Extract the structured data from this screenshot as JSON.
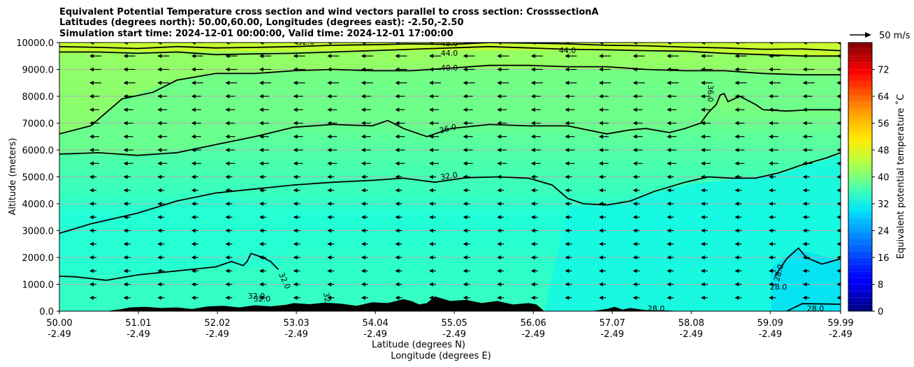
{
  "chart_data": {
    "type": "contourf",
    "title_lines": [
      "Equivalent Potential Temperature cross section and wind vectors parallel to cross section: CrosssectionA",
      "Latitudes (degrees north): 50.00,60.00, Longitudes (degrees east): -2.50,-2.50",
      "Simulation start time: 2024-12-01 00:00:00, Valid time: 2024-12-01 17:00:00"
    ],
    "xlabel_lines": [
      "Latitude (degrees N)",
      "Longitude (degrees E)"
    ],
    "ylabel": "Altitude (meters)",
    "x_tick_lat": [
      "50.00",
      "51.01",
      "52.02",
      "53.03",
      "54.04",
      "55.05",
      "56.06",
      "57.07",
      "58.08",
      "59.09",
      "59.99"
    ],
    "x_tick_lon": [
      "-2.49",
      "-2.49",
      "-2.49",
      "-2.49",
      "-2.49",
      "-2.49",
      "-2.49",
      "-2.49",
      "-2.49",
      "-2.49",
      "-2.49"
    ],
    "x_range": [
      50.0,
      59.99
    ],
    "y_ticks": [
      "0.0",
      "1000.0",
      "2000.0",
      "3000.0",
      "4000.0",
      "5000.0",
      "6000.0",
      "7000.0",
      "8000.0",
      "9000.0",
      "10000.0"
    ],
    "ylim": [
      0,
      10000
    ],
    "grid": "horizontal",
    "colorbar": {
      "label": "Equivalent potential temperature ˚C",
      "range": [
        0,
        80
      ],
      "ticks": [
        "0",
        "8",
        "16",
        "24",
        "32",
        "40",
        "48",
        "56",
        "64",
        "72"
      ],
      "levels_step": 2,
      "colormap": "jet"
    },
    "quiver_key": "50 m/s",
    "wind_direction": "left (southward, parallel to cross section)",
    "contour_lines": [
      {
        "level": 28.0,
        "label": "28.0",
        "points": [
          [
            59.3,
            0
          ],
          [
            59.5,
            280
          ],
          [
            59.99,
            260
          ]
        ]
      },
      {
        "level": 28.0,
        "label": "28.0",
        "points": [
          [
            59.15,
            1300
          ],
          [
            59.3,
            1950
          ],
          [
            59.45,
            2350
          ],
          [
            59.55,
            2000
          ],
          [
            59.75,
            1750
          ],
          [
            59.99,
            1950
          ]
        ]
      },
      {
        "level": 32.0,
        "label": "32.0",
        "points": [
          [
            50.0,
            1300
          ],
          [
            50.2,
            1280
          ],
          [
            50.6,
            1150
          ],
          [
            51.0,
            1350
          ],
          [
            51.5,
            1500
          ],
          [
            52.0,
            1650
          ],
          [
            52.2,
            1850
          ],
          [
            52.35,
            1700
          ],
          [
            52.4,
            1850
          ],
          [
            52.45,
            2150
          ],
          [
            52.6,
            2000
          ],
          [
            52.7,
            1850
          ],
          [
            52.8,
            1550
          ]
        ]
      },
      {
        "level": 32.0,
        "label": "32.0",
        "points": [
          [
            50.0,
            2900
          ],
          [
            50.4,
            3250
          ],
          [
            51.0,
            3650
          ],
          [
            51.5,
            4100
          ],
          [
            52.0,
            4400
          ],
          [
            52.5,
            4550
          ],
          [
            53.0,
            4700
          ],
          [
            53.5,
            4800
          ],
          [
            54.0,
            4870
          ],
          [
            54.4,
            4950
          ],
          [
            54.8,
            4800
          ],
          [
            55.2,
            4970
          ],
          [
            55.6,
            5000
          ],
          [
            56.0,
            4950
          ],
          [
            56.3,
            4700
          ],
          [
            56.5,
            4200
          ],
          [
            56.7,
            4000
          ],
          [
            57.0,
            3950
          ],
          [
            57.3,
            4100
          ],
          [
            57.6,
            4450
          ],
          [
            58.0,
            4800
          ],
          [
            58.3,
            5000
          ],
          [
            58.6,
            4950
          ],
          [
            58.9,
            4950
          ],
          [
            59.2,
            5150
          ],
          [
            59.5,
            5450
          ],
          [
            59.8,
            5700
          ],
          [
            59.99,
            5900
          ]
        ]
      },
      {
        "level": 36.0,
        "label": "36.0",
        "points": [
          [
            50.0,
            5850
          ],
          [
            50.5,
            5900
          ],
          [
            51.0,
            5800
          ],
          [
            51.5,
            5900
          ],
          [
            52.0,
            6200
          ],
          [
            52.5,
            6500
          ],
          [
            53.0,
            6850
          ],
          [
            53.5,
            6950
          ],
          [
            54.0,
            6900
          ],
          [
            54.2,
            7100
          ],
          [
            54.4,
            6800
          ],
          [
            54.7,
            6500
          ],
          [
            55.0,
            6800
          ],
          [
            55.5,
            6950
          ],
          [
            56.0,
            6900
          ],
          [
            56.5,
            6900
          ],
          [
            57.0,
            6600
          ],
          [
            57.3,
            6750
          ],
          [
            57.5,
            6800
          ],
          [
            57.8,
            6650
          ],
          [
            58.0,
            6800
          ],
          [
            58.2,
            7000
          ],
          [
            58.3,
            7400
          ],
          [
            58.4,
            7700
          ],
          [
            58.45,
            8050
          ],
          [
            58.5,
            8100
          ],
          [
            58.55,
            7800
          ],
          [
            58.7,
            8000
          ],
          [
            58.9,
            7700
          ],
          [
            59.0,
            7500
          ],
          [
            59.3,
            7450
          ],
          [
            59.6,
            7500
          ],
          [
            59.99,
            7500
          ]
        ]
      },
      {
        "level": 40.0,
        "label": "40.0",
        "points": [
          [
            50.0,
            6600
          ],
          [
            50.4,
            6900
          ],
          [
            50.8,
            7900
          ],
          [
            51.2,
            8150
          ],
          [
            51.5,
            8600
          ],
          [
            52.0,
            8850
          ],
          [
            52.5,
            8850
          ],
          [
            53.0,
            8950
          ],
          [
            53.5,
            9000
          ],
          [
            54.0,
            8950
          ],
          [
            54.5,
            8950
          ],
          [
            55.0,
            9050
          ],
          [
            55.5,
            9150
          ],
          [
            56.0,
            9150
          ],
          [
            56.5,
            9100
          ],
          [
            57.0,
            9100
          ],
          [
            57.5,
            9000
          ],
          [
            58.0,
            8950
          ],
          [
            58.5,
            8950
          ],
          [
            59.0,
            8850
          ],
          [
            59.5,
            8800
          ],
          [
            59.99,
            8800
          ]
        ]
      },
      {
        "level": 44.0,
        "label": "44.0",
        "points": [
          [
            50.0,
            9650
          ],
          [
            50.5,
            9650
          ],
          [
            51.0,
            9600
          ],
          [
            51.5,
            9650
          ],
          [
            52.0,
            9550
          ],
          [
            52.5,
            9580
          ],
          [
            53.0,
            9600
          ],
          [
            53.5,
            9650
          ],
          [
            54.0,
            9700
          ],
          [
            54.5,
            9750
          ],
          [
            55.0,
            9800
          ],
          [
            55.5,
            9850
          ],
          [
            56.0,
            9800
          ],
          [
            56.5,
            9750
          ],
          [
            57.0,
            9730
          ],
          [
            57.5,
            9700
          ],
          [
            58.0,
            9680
          ],
          [
            58.5,
            9600
          ],
          [
            59.0,
            9550
          ],
          [
            59.5,
            9500
          ],
          [
            59.99,
            9500
          ]
        ]
      },
      {
        "level": 48.0,
        "label": "48.0",
        "points": [
          [
            50.0,
            9850
          ],
          [
            50.5,
            9820
          ],
          [
            51.0,
            9780
          ],
          [
            51.5,
            9850
          ],
          [
            52.0,
            9800
          ],
          [
            52.5,
            9820
          ],
          [
            53.0,
            9850
          ],
          [
            53.5,
            9900
          ],
          [
            54.0,
            9920
          ],
          [
            54.5,
            9950
          ],
          [
            55.0,
            9930
          ],
          [
            55.5,
            10000
          ],
          [
            56.0,
            9980
          ],
          [
            56.5,
            9950
          ],
          [
            57.0,
            9900
          ],
          [
            57.5,
            9880
          ],
          [
            58.0,
            9830
          ],
          [
            58.5,
            9800
          ],
          [
            59.0,
            9750
          ],
          [
            59.5,
            9760
          ],
          [
            59.99,
            9700
          ]
        ]
      }
    ],
    "inline_labels": [
      "32.0",
      "32.0",
      "32.0",
      "32.0",
      "36.0",
      "40.0",
      "44.0",
      "48.0",
      "52.0",
      "28.0",
      "28.0",
      "28.0",
      "36.0",
      "32.0"
    ],
    "terrain": {
      "color": "#000000",
      "x": [
        50.0,
        50.6,
        50.8,
        50.9,
        51.1,
        51.3,
        51.5,
        51.7,
        51.9,
        52.1,
        52.3,
        52.5,
        52.7,
        52.9,
        53.0,
        53.2,
        53.4,
        53.6,
        53.8,
        54.0,
        54.2,
        54.4,
        54.5,
        54.6,
        54.7,
        54.8,
        55.0,
        55.2,
        55.4,
        55.6,
        55.8,
        56.0,
        56.1,
        56.2,
        56.5,
        56.8,
        57.0,
        57.1,
        57.2,
        57.3,
        57.5,
        57.7,
        58.0,
        59.99
      ],
      "y": [
        0,
        0,
        80,
        140,
        160,
        120,
        140,
        80,
        180,
        200,
        140,
        220,
        180,
        240,
        300,
        260,
        320,
        280,
        200,
        330,
        300,
        450,
        380,
        250,
        300,
        550,
        380,
        420,
        300,
        380,
        250,
        300,
        250,
        0,
        0,
        0,
        80,
        160,
        60,
        120,
        40,
        30,
        0,
        0
      ]
    }
  },
  "field_description_levels": {
    "surface_band": [
      31,
      33,
      34,
      33,
      31,
      30,
      29,
      28,
      30,
      31,
      28
    ],
    "upper_band": [
      45,
      44,
      42,
      41,
      40,
      41,
      42,
      42,
      43,
      44,
      44
    ]
  }
}
